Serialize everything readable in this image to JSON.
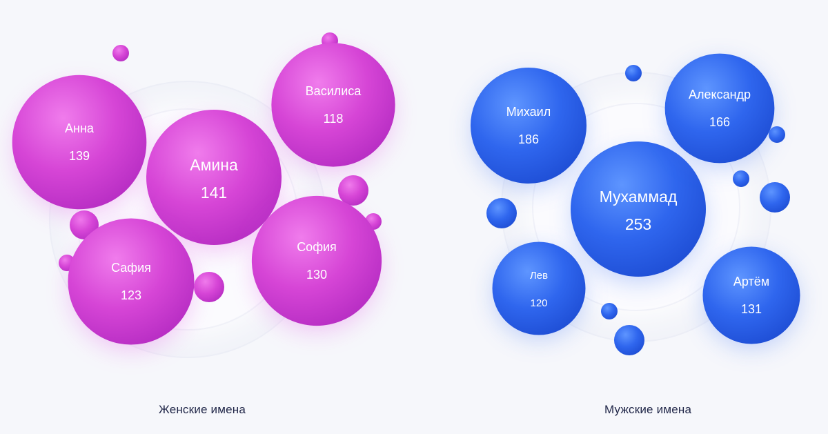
{
  "chart_data": [
    {
      "type": "bubble",
      "title": "Женские имена",
      "color": "#d940d8",
      "series": [
        {
          "category": "Амина",
          "value": 141
        },
        {
          "category": "Анна",
          "value": 139
        },
        {
          "category": "София",
          "value": 130
        },
        {
          "category": "Сафия",
          "value": 123
        },
        {
          "category": "Василиса",
          "value": 118
        }
      ]
    },
    {
      "type": "bubble",
      "title": "Мужские имена",
      "color": "#2e66ee",
      "series": [
        {
          "category": "Мухаммад",
          "value": 253
        },
        {
          "category": "Михаил",
          "value": 186
        },
        {
          "category": "Александр",
          "value": 166
        },
        {
          "category": "Артём",
          "value": 131
        },
        {
          "category": "Лев",
          "value": 120
        }
      ]
    }
  ]
}
